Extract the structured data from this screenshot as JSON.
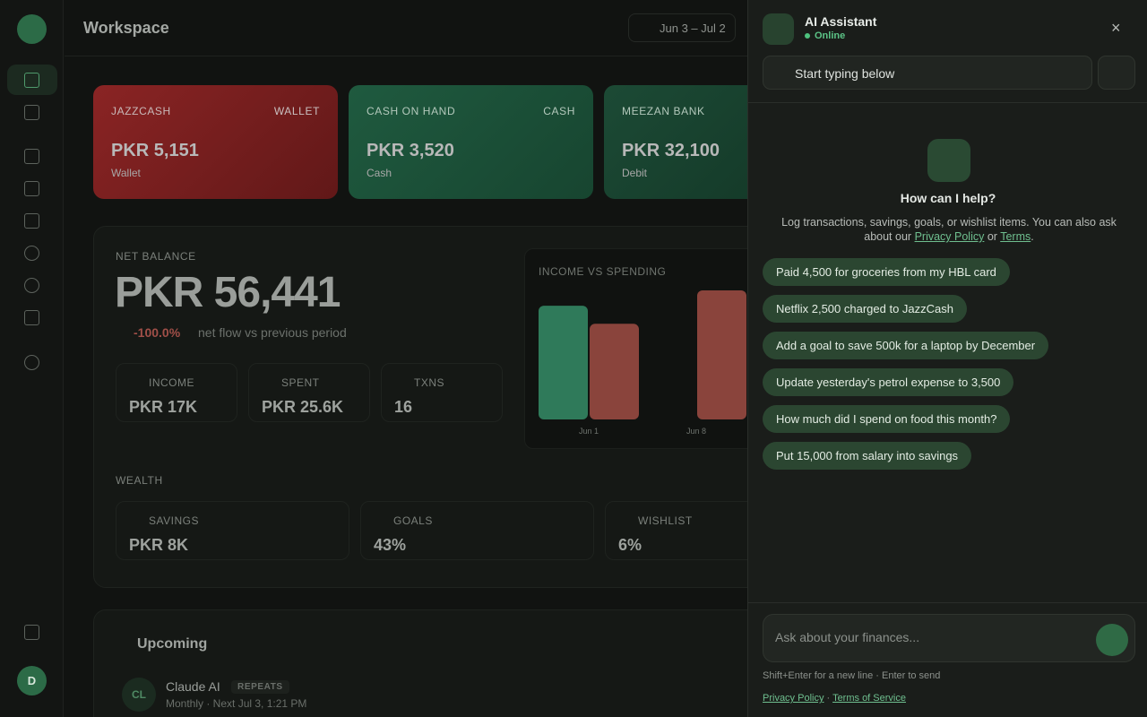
{
  "header": {
    "title": "Workspace",
    "date_range": "Jun 3 – Jul 2"
  },
  "sidebar": {
    "avatar": "D"
  },
  "accounts": [
    {
      "name": "JAZZCASH",
      "type": "WALLET",
      "amount": "PKR 5,151",
      "subtitle": "Wallet"
    },
    {
      "name": "CASH ON HAND",
      "type": "CASH",
      "amount": "PKR 3,520",
      "subtitle": "Cash"
    },
    {
      "name": "MEEZAN BANK",
      "amount": "PKR 32,100",
      "subtitle": "Debit"
    }
  ],
  "net_balance": {
    "label": "NET BALANCE",
    "amount": "PKR 56,441",
    "change": "-100.0%",
    "change_note": "net flow vs previous period",
    "stats": [
      {
        "label": "INCOME",
        "value": "PKR 17K"
      },
      {
        "label": "SPENT",
        "value": "PKR 25.6K"
      },
      {
        "label": "TXNS",
        "value": "16"
      }
    ]
  },
  "chart_data": {
    "type": "bar",
    "title": "INCOME VS SPENDING",
    "categories": [
      "Jun 1",
      "Jun 8"
    ],
    "series": [
      {
        "color": "#2f7a5a",
        "values": [
          17000,
          null
        ]
      },
      {
        "color": "#8a443c",
        "values": [
          14300,
          19300
        ]
      }
    ]
  },
  "wealth": {
    "label": "WEALTH",
    "items": [
      {
        "label": "SAVINGS",
        "value": "PKR 8K"
      },
      {
        "label": "GOALS",
        "value": "43%"
      },
      {
        "label": "WISHLIST",
        "value": "6%"
      }
    ]
  },
  "upcoming": {
    "title": "Upcoming",
    "items": [
      {
        "initials": "CL",
        "name": "Claude AI",
        "badge": "REPEATS",
        "detail": "Monthly · Next Jul 3, 1:21 PM"
      }
    ]
  },
  "assistant": {
    "title": "AI Assistant",
    "status": "Online",
    "session": "Start typing below",
    "heading": "How can I help?",
    "intro": "Log transactions, savings, goals, or wishlist items. You can also ask about our",
    "intro_link1": "Privacy Policy",
    "intro_or": "or",
    "intro_link2": "Terms",
    "intro_end": ".",
    "suggestions": [
      "Paid 4,500 for groceries from my HBL card",
      "Netflix 2,500 charged to JazzCash",
      "Add a goal to save 500k for a laptop by December",
      "Update yesterday's petrol expense to 3,500",
      "How much did I spend on food this month?",
      "Put 15,000 from salary into savings"
    ],
    "placeholder": "Ask about your finances...",
    "hint": "Shift+Enter for a new line · Enter to send",
    "footer_link1": "Privacy Policy",
    "footer_sep": "·",
    "footer_link2": "Terms of Service"
  }
}
